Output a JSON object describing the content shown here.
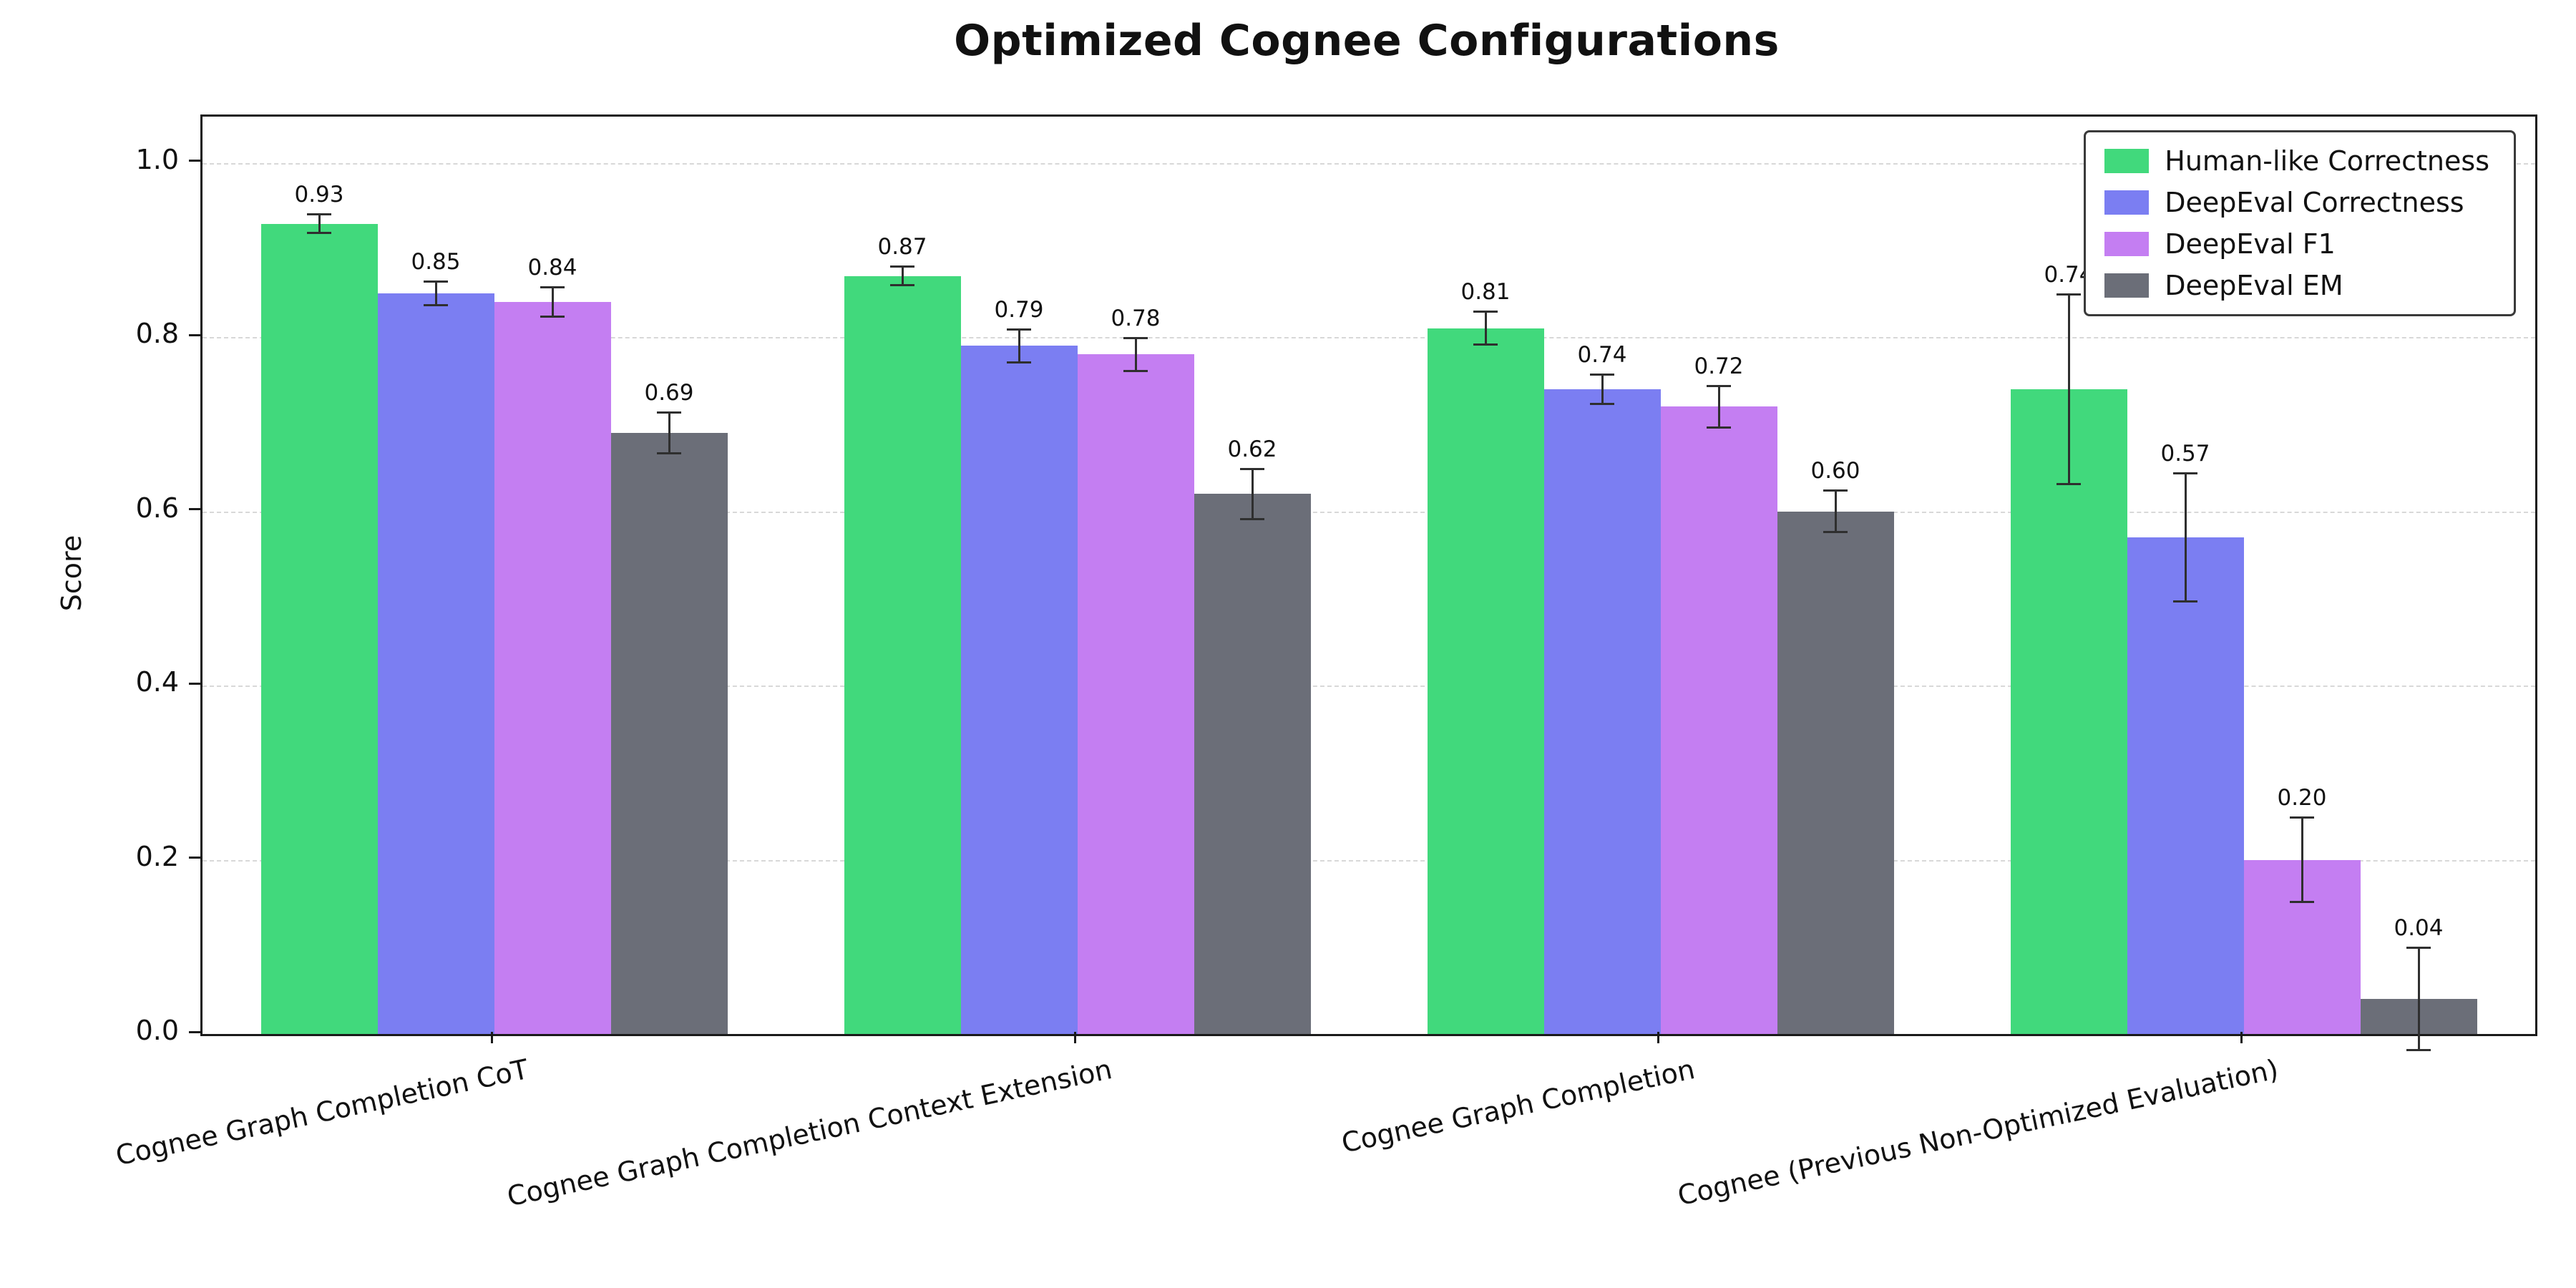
{
  "chart_data": {
    "type": "bar",
    "title": "Optimized Cognee Configurations",
    "ylabel": "Score",
    "xlabel": "",
    "ylim": [
      0,
      1.05
    ],
    "yticks": [
      0.0,
      0.2,
      0.4,
      0.6,
      0.8,
      1.0
    ],
    "grid": "horizontal dashed",
    "legend_position": "upper right",
    "error_bars": true,
    "categories": [
      "Cognee Graph Completion CoT",
      "Cognee Graph Completion Context Extension",
      "Cognee Graph Completion",
      "Cognee (Previous Non-Optimized Evaluation)"
    ],
    "series": [
      {
        "name": "Human-like Correctness",
        "color": "#41d97c",
        "values": [
          0.93,
          0.87,
          0.81,
          0.74
        ],
        "errors": [
          0.012,
          0.012,
          0.02,
          0.11
        ]
      },
      {
        "name": "DeepEval Correctness",
        "color": "#7b7ef2",
        "values": [
          0.85,
          0.79,
          0.74,
          0.57
        ],
        "errors": [
          0.015,
          0.02,
          0.018,
          0.075
        ]
      },
      {
        "name": "DeepEval F1",
        "color": "#c47ef2",
        "values": [
          0.84,
          0.78,
          0.72,
          0.2
        ],
        "errors": [
          0.018,
          0.02,
          0.025,
          0.05
        ]
      },
      {
        "name": "DeepEval EM",
        "color": "#6b6e78",
        "values": [
          0.69,
          0.62,
          0.6,
          0.04
        ],
        "errors": [
          0.025,
          0.03,
          0.025,
          0.06
        ]
      }
    ],
    "bar_value_labels": [
      [
        "0.93",
        "0.87",
        "0.81",
        "0.74"
      ],
      [
        "0.85",
        "0.79",
        "0.74",
        "0.57"
      ],
      [
        "0.84",
        "0.78",
        "0.72",
        "0.20"
      ],
      [
        "0.69",
        "0.62",
        "0.60",
        "0.04"
      ]
    ]
  }
}
